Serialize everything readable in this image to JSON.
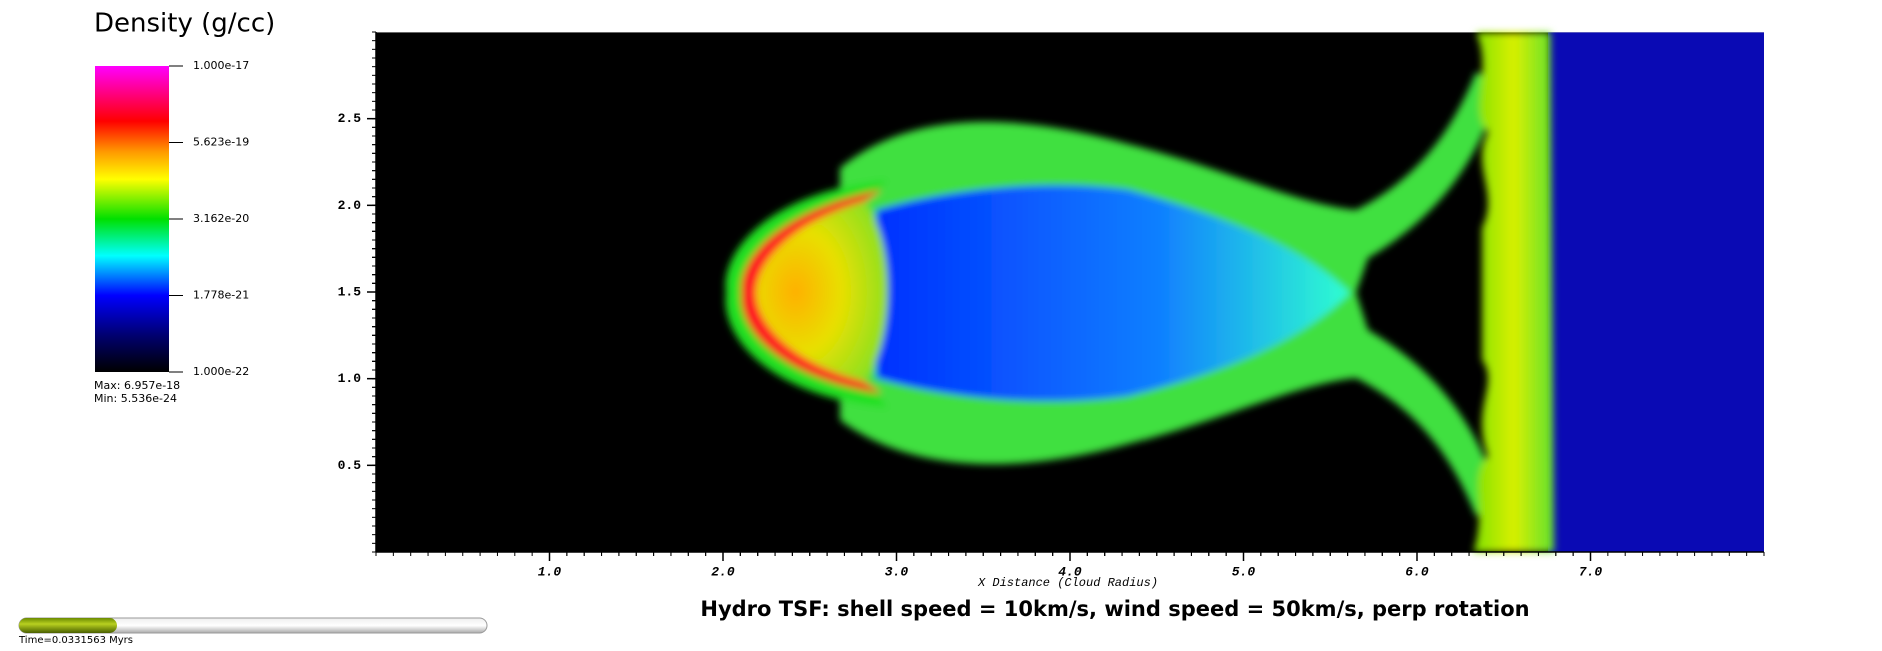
{
  "chart_data": {
    "type": "pseudocolor",
    "title": "Hydro TSF: shell speed = 10km/s, wind speed = 50km/s, perp rotation",
    "xlabel": "X Distance (Cloud Radius)",
    "xlim": [
      0,
      8
    ],
    "ylim": [
      0,
      3
    ],
    "xticks": [
      {
        "value": 1,
        "label": "1.0"
      },
      {
        "value": 2,
        "label": "2.0"
      },
      {
        "value": 3,
        "label": "3.0"
      },
      {
        "value": 4,
        "label": "4.0"
      },
      {
        "value": 5,
        "label": "5.0"
      },
      {
        "value": 6,
        "label": "6.0"
      },
      {
        "value": 7,
        "label": "7.0"
      }
    ],
    "yticks": [
      {
        "value": 0.5,
        "label": "0.5"
      },
      {
        "value": 1,
        "label": "1.0"
      },
      {
        "value": 1.5,
        "label": "1.5"
      },
      {
        "value": 2,
        "label": "2.0"
      },
      {
        "value": 2.5,
        "label": "2.5"
      }
    ],
    "colorbar": {
      "title": "Density (g/cc)",
      "log": true,
      "clim": [
        1e-22,
        1e-17
      ],
      "ticks": [
        {
          "value": 1e-17,
          "label": "1.000e-17"
        },
        {
          "value": 5.623e-19,
          "label": "5.623e-19"
        },
        {
          "value": 3.162e-20,
          "label": "3.162e-20"
        },
        {
          "value": 1.778e-21,
          "label": "1.778e-21"
        },
        {
          "value": 1e-22,
          "label": "1.000e-22"
        }
      ],
      "max_text": "Max:  6.957e-18",
      "min_text": "Min:  5.536e-24"
    },
    "time_text": "Time=0.0331563 Myrs"
  }
}
